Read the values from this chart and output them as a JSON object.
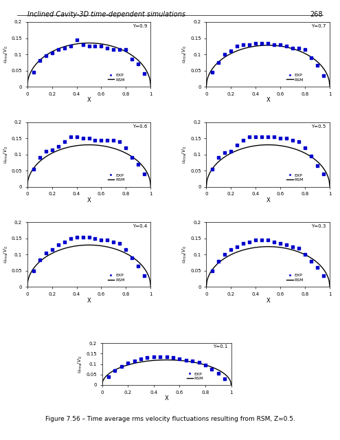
{
  "title_header": "Inclined Cavity-3D time-dependent simulations",
  "page_number": "268",
  "caption": "Figure 7.56 – Time average rms velocity fluctuations resulting from RSM, Z=0.5.",
  "plots": [
    {
      "label": "Y=0.9",
      "row": 0,
      "col": 0
    },
    {
      "label": "Y=0.7",
      "row": 0,
      "col": 1
    },
    {
      "label": "Y=0.6",
      "row": 1,
      "col": 0
    },
    {
      "label": "Y=0.5",
      "row": 1,
      "col": 1
    },
    {
      "label": "Y=0.4",
      "row": 2,
      "col": 0
    },
    {
      "label": "Y=0.3",
      "row": 2,
      "col": 1
    },
    {
      "label": "Y=0.1",
      "row": 3,
      "col": 0
    }
  ],
  "xlabel": "X",
  "ylabel": "u_rms/V_0",
  "xlim": [
    0,
    1
  ],
  "ylim": [
    0,
    0.2
  ],
  "yticks": [
    0,
    0.05,
    0.1,
    0.15,
    0.2
  ],
  "xticks": [
    0,
    0.2,
    0.4,
    0.6,
    0.8,
    1.0
  ],
  "dot_color": "#0000cc",
  "line_color": "#000000",
  "background_color": "#ffffff"
}
